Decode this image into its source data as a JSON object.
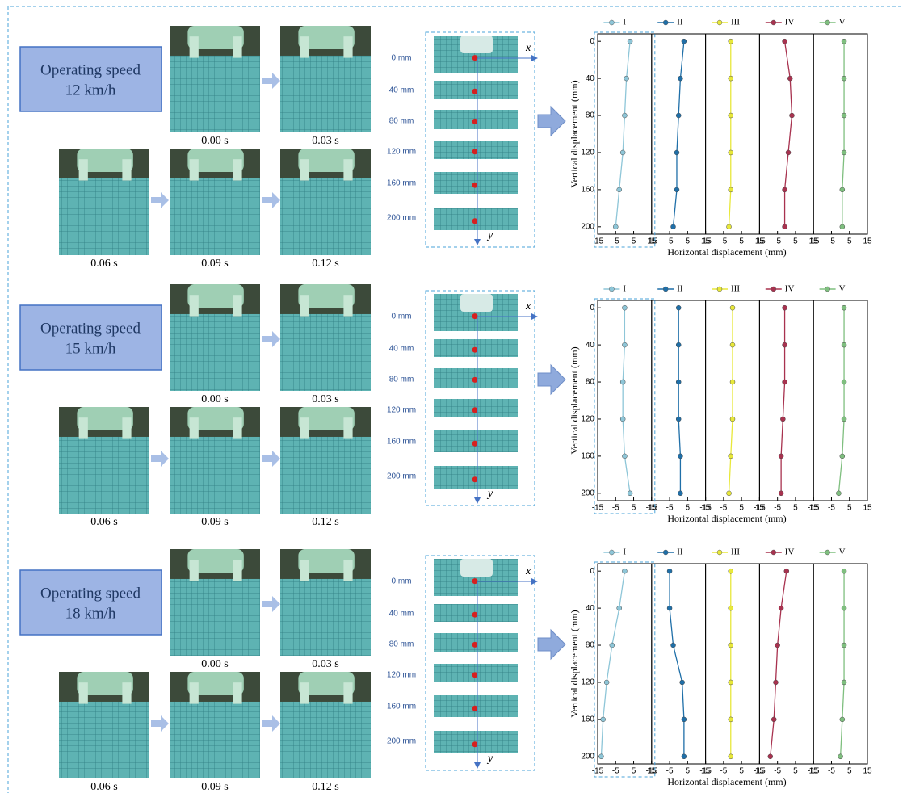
{
  "panels": [
    {
      "speed": [
        "Operating speed",
        "12 km/h"
      ],
      "frames": [
        "0.00 s",
        "0.03 s",
        "0.06 s",
        "0.09 s",
        "0.12 s"
      ],
      "distances": [
        "0 mm",
        "40 mm",
        "80 mm",
        "120 mm",
        "160 mm",
        "200 mm"
      ]
    },
    {
      "speed": [
        "Operating speed",
        "15 km/h"
      ],
      "frames": [
        "0.00 s",
        "0.03 s",
        "0.06 s",
        "0.09 s",
        "0.12 s"
      ],
      "distances": [
        "0 mm",
        "40 mm",
        "80 mm",
        "120 mm",
        "160 mm",
        "200 mm"
      ]
    },
    {
      "speed": [
        "Operating speed",
        "18 km/h"
      ],
      "frames": [
        "0.00 s",
        "0.03 s",
        "0.06 s",
        "0.09 s",
        "0.12 s"
      ],
      "distances": [
        "0 mm",
        "40 mm",
        "80 mm",
        "120 mm",
        "160 mm",
        "200 mm"
      ]
    }
  ],
  "axis_labels": [
    "x",
    "y"
  ],
  "chart_data": [
    {
      "type": "line",
      "xlabel": "Horizontal displacement (mm)",
      "ylabel": "Vertical displacement (mm)",
      "y": [
        0,
        40,
        80,
        120,
        160,
        200
      ],
      "xlim": [
        -15,
        15
      ],
      "xticks": [
        -15,
        -5,
        5,
        15
      ],
      "ylim": [
        -8,
        208
      ],
      "yticks": [
        0,
        40,
        80,
        120,
        160,
        200
      ],
      "y_inverted": true,
      "series": [
        {
          "name": "I",
          "color": "#8ec6d8",
          "values": [
            3,
            1,
            0,
            -1,
            -3,
            -5
          ]
        },
        {
          "name": "II",
          "color": "#1f6fa8",
          "values": [
            3,
            1,
            0,
            -1,
            -1,
            -3
          ]
        },
        {
          "name": "III",
          "color": "#e8e83a",
          "values": [
            -1,
            -1,
            -1,
            -1,
            -1,
            -2
          ]
        },
        {
          "name": "IV",
          "color": "#a8324f",
          "values": [
            -1,
            2,
            3,
            1,
            -1,
            -1
          ]
        },
        {
          "name": "V",
          "color": "#7fbf7f",
          "values": [
            2,
            2,
            2,
            2,
            1,
            1
          ]
        }
      ]
    },
    {
      "type": "line",
      "xlabel": "Horizontal displacement (mm)",
      "ylabel": "Vertical displacement (mm)",
      "y": [
        0,
        40,
        80,
        120,
        160,
        200
      ],
      "xlim": [
        -15,
        15
      ],
      "xticks": [
        -15,
        -5,
        5,
        15
      ],
      "ylim": [
        -8,
        208
      ],
      "yticks": [
        0,
        40,
        80,
        120,
        160,
        200
      ],
      "y_inverted": true,
      "series": [
        {
          "name": "I",
          "color": "#8ec6d8",
          "values": [
            0,
            0,
            -1,
            -1,
            0,
            3
          ]
        },
        {
          "name": "II",
          "color": "#1f6fa8",
          "values": [
            0,
            0,
            0,
            0,
            1,
            1
          ]
        },
        {
          "name": "III",
          "color": "#e8e83a",
          "values": [
            0,
            0,
            0,
            0,
            -1,
            -2
          ]
        },
        {
          "name": "IV",
          "color": "#a8324f",
          "values": [
            -1,
            -1,
            -1,
            -2,
            -3,
            -3
          ]
        },
        {
          "name": "V",
          "color": "#7fbf7f",
          "values": [
            2,
            2,
            2,
            2,
            1,
            -1
          ]
        }
      ]
    },
    {
      "type": "line",
      "xlabel": "Horizontal displacement (mm)",
      "ylabel": "Vertical displacement (mm)",
      "y": [
        0,
        40,
        80,
        120,
        160,
        200
      ],
      "xlim": [
        -15,
        15
      ],
      "xticks": [
        -15,
        -5,
        5,
        15
      ],
      "ylim": [
        -8,
        208
      ],
      "yticks": [
        0,
        40,
        80,
        120,
        160,
        200
      ],
      "y_inverted": true,
      "series": [
        {
          "name": "I",
          "color": "#8ec6d8",
          "values": [
            0,
            -3,
            -7,
            -10,
            -12,
            -13
          ]
        },
        {
          "name": "II",
          "color": "#1f6fa8",
          "values": [
            -5,
            -5,
            -3,
            2,
            3,
            3
          ]
        },
        {
          "name": "III",
          "color": "#e8e83a",
          "values": [
            -1,
            -1,
            -1,
            -1,
            -1,
            -1
          ]
        },
        {
          "name": "IV",
          "color": "#a8324f",
          "values": [
            0,
            -3,
            -5,
            -6,
            -7,
            -9
          ]
        },
        {
          "name": "V",
          "color": "#7fbf7f",
          "values": [
            2,
            2,
            2,
            2,
            1,
            0
          ]
        }
      ]
    }
  ]
}
